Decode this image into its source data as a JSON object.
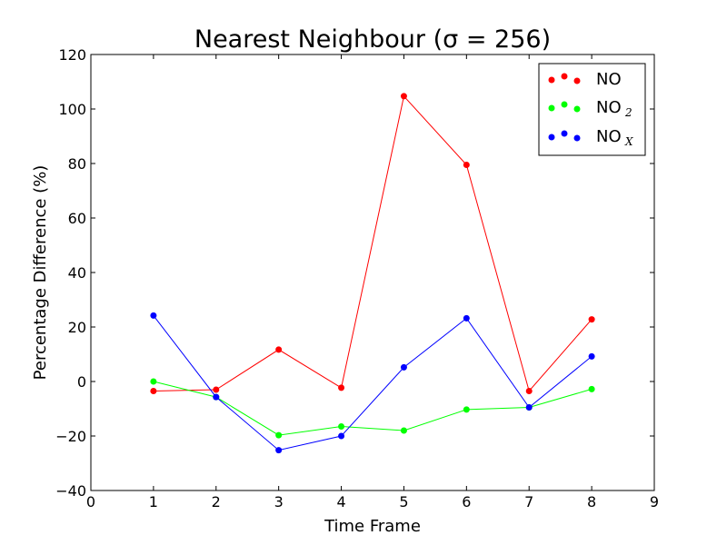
{
  "chart_data": {
    "type": "line",
    "title": "Nearest Neighbour (σ = 256)",
    "xlabel": "Time Frame",
    "ylabel": "Percentage Difference (%)",
    "xlim": [
      0,
      9
    ],
    "ylim": [
      -40,
      120
    ],
    "xticks": [
      0,
      1,
      2,
      3,
      4,
      5,
      6,
      7,
      8,
      9
    ],
    "yticks": [
      -40,
      -20,
      0,
      20,
      40,
      60,
      80,
      100,
      120
    ],
    "ytick_labels": [
      "−40",
      "−20",
      "0",
      "20",
      "40",
      "60",
      "80",
      "100",
      "120"
    ],
    "grid": false,
    "legend_position": "top-right",
    "x": [
      1,
      2,
      3,
      4,
      5,
      6,
      7,
      8
    ],
    "series": [
      {
        "name": "NO",
        "name_base": "NO",
        "name_sub": "",
        "color": "#ff0000",
        "values": [
          -3.5,
          -3,
          11.7,
          -2.3,
          104.7,
          79.5,
          -3.5,
          22.8
        ]
      },
      {
        "name": "NO2",
        "name_base": "NO",
        "name_sub": "2",
        "color": "#00ff00",
        "values": [
          0,
          -5.7,
          -19.7,
          -16.5,
          -18,
          -10.3,
          -9.5,
          -2.8
        ]
      },
      {
        "name": "NOX",
        "name_base": "NO",
        "name_sub": "X",
        "color": "#0000ff",
        "values": [
          24.2,
          -5.7,
          -25.2,
          -20,
          5.2,
          23.2,
          -9.5,
          9.2
        ]
      }
    ]
  }
}
